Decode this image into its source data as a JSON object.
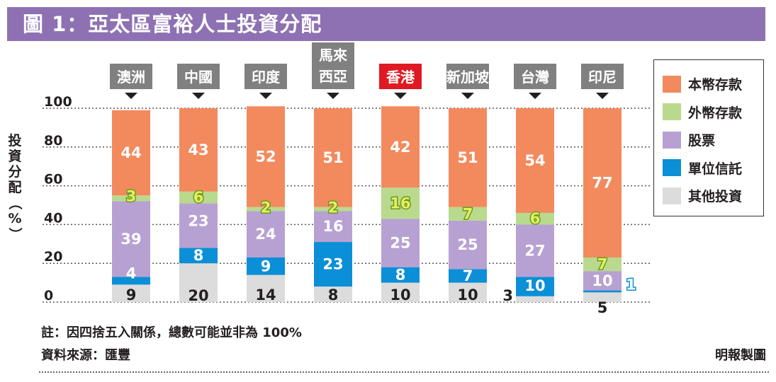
{
  "title": "圖 1：亞太區富裕人士投資分配",
  "colors": {
    "title_bg": "#8e71b3",
    "tag_bg": "#808080",
    "tag_highlight": "#e01a22",
    "local_deposit": "#f28a5e",
    "foreign_deposit": "#b9da8d",
    "stocks": "#b7a1d2",
    "unit_trust": "#0b8fd6",
    "other": "#dcdcdc"
  },
  "chart_data": {
    "type": "bar",
    "stacked": true,
    "ylabel": "投資分配（%）",
    "ylim": [
      0,
      100
    ],
    "yticks": [
      "0",
      "20",
      "40",
      "60",
      "80",
      "100"
    ],
    "grid": true,
    "legend_position": "right",
    "categories": [
      "澳洲",
      "中國",
      "印度",
      "馬來西亞",
      "香港",
      "新加坡",
      "台灣",
      "印尼"
    ],
    "category_labels": [
      [
        "澳洲"
      ],
      [
        "中國"
      ],
      [
        "印度"
      ],
      [
        "馬來",
        "西亞"
      ],
      [
        "香港"
      ],
      [
        "新加坡"
      ],
      [
        "台灣"
      ],
      [
        "印尼"
      ]
    ],
    "highlight": "香港",
    "series": [
      {
        "name": "其他投資",
        "key": "other",
        "values": [
          9,
          20,
          14,
          8,
          10,
          10,
          3,
          5
        ]
      },
      {
        "name": "單位信託",
        "key": "unit_trust",
        "values": [
          4,
          8,
          9,
          23,
          8,
          7,
          10,
          1
        ]
      },
      {
        "name": "股票",
        "key": "stocks",
        "values": [
          39,
          23,
          24,
          16,
          25,
          25,
          27,
          10
        ]
      },
      {
        "name": "外幣存款",
        "key": "foreign_deposit",
        "values": [
          3,
          6,
          2,
          2,
          16,
          7,
          6,
          7
        ]
      },
      {
        "name": "本幣存款",
        "key": "local_deposit",
        "values": [
          44,
          43,
          52,
          51,
          42,
          51,
          54,
          77
        ]
      }
    ],
    "legend": [
      "本幣存款",
      "外幣存款",
      "股票",
      "單位信託",
      "其他投資"
    ]
  },
  "footnote_1": "註：因四捨五入關係，總數可能並非為 100%",
  "footnote_2": "資料來源：匯豐",
  "credit": "明報製圖"
}
